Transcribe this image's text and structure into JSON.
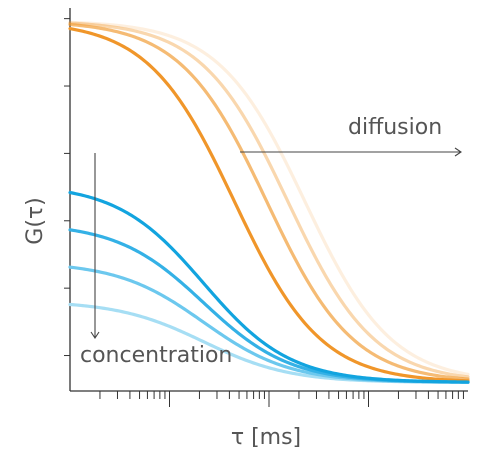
{
  "chart_data": {
    "type": "line",
    "title": "",
    "xlabel": "τ [ms]",
    "ylabel": "G(τ)",
    "x_scale": "log",
    "xlim": [
      0.01,
      100
    ],
    "ylim": [
      0,
      5.4
    ],
    "grid": false,
    "legend": "none",
    "annotations": [
      {
        "text": "diffusion",
        "arrow": "right"
      },
      {
        "text": "concentration",
        "arrow": "down"
      }
    ],
    "series": [
      {
        "group": "diffusion",
        "values_desc": "G(τ) = G0 / (1 + τ/τD)",
        "G0": 5.1,
        "tau_d_ms": 0.45,
        "color": "#f0962a",
        "opacity": 1.0
      },
      {
        "group": "diffusion",
        "G0": 5.1,
        "tau_d_ms": 0.95,
        "color": "#f0962a",
        "opacity": 0.65
      },
      {
        "group": "diffusion",
        "G0": 5.1,
        "tau_d_ms": 1.55,
        "color": "#f0962a",
        "opacity": 0.38
      },
      {
        "group": "diffusion",
        "G0": 5.1,
        "tau_d_ms": 2.3,
        "color": "#f0962a",
        "opacity": 0.15
      },
      {
        "group": "concentration",
        "G0": 2.8,
        "tau_d_ms": 0.22,
        "color": "#12a4df",
        "opacity": 1.0
      },
      {
        "group": "concentration",
        "G0": 2.25,
        "tau_d_ms": 0.22,
        "color": "#34b1e6",
        "opacity": 1.0
      },
      {
        "group": "concentration",
        "G0": 1.7,
        "tau_d_ms": 0.22,
        "color": "#6cc8ee",
        "opacity": 1.0
      },
      {
        "group": "concentration",
        "G0": 1.15,
        "tau_d_ms": 0.22,
        "color": "#a6def4",
        "opacity": 1.0
      }
    ],
    "y_ticks": [
      0.5,
      1.45,
      2.4,
      3.35,
      4.3,
      5.25
    ],
    "x_ticks": {
      "major": [
        0.1,
        1,
        10
      ],
      "minor_multipliers": [
        2,
        3,
        4,
        5,
        6,
        7,
        8,
        9
      ]
    }
  }
}
